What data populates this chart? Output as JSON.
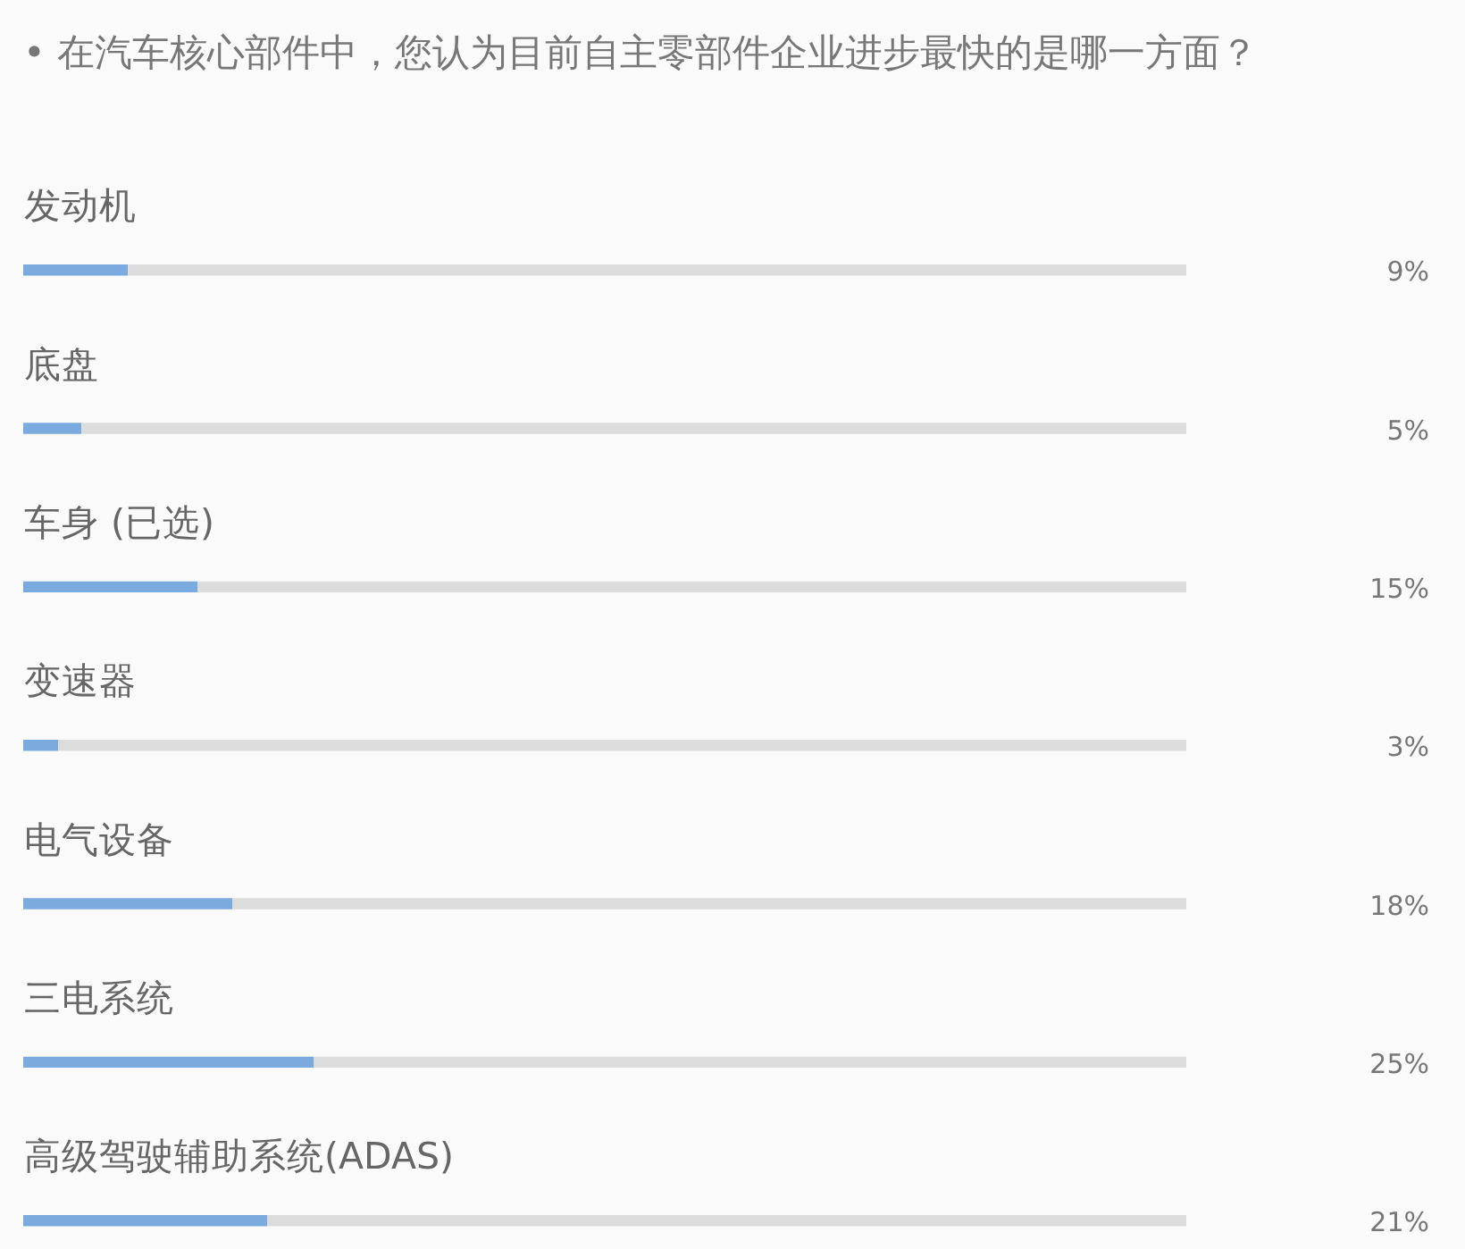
{
  "chart_data": {
    "type": "bar",
    "orientation": "horizontal",
    "stacked": true,
    "title": "• 在汽车核心部件中，您认为目前自主零部件企业进步最快的是哪一方面？",
    "categories": [
      "发动机",
      "底盘",
      "车身 (已选)",
      "变速器",
      "电气设备",
      "三电系统",
      "高级驾驶辅助系统(ADAS)"
    ],
    "series": [
      {
        "color": "#7aaade",
        "values": [
          9,
          5,
          15,
          3,
          18,
          25,
          21
        ],
        "value_labels": [
          "9%",
          "5%",
          "15%",
          "3%",
          "18%",
          "25%",
          "21%"
        ]
      },
      {
        "color": "#dcdcdc",
        "values": [
          91,
          95,
          85,
          97,
          82,
          75,
          79
        ]
      }
    ],
    "tick_labels": "y"
  }
}
